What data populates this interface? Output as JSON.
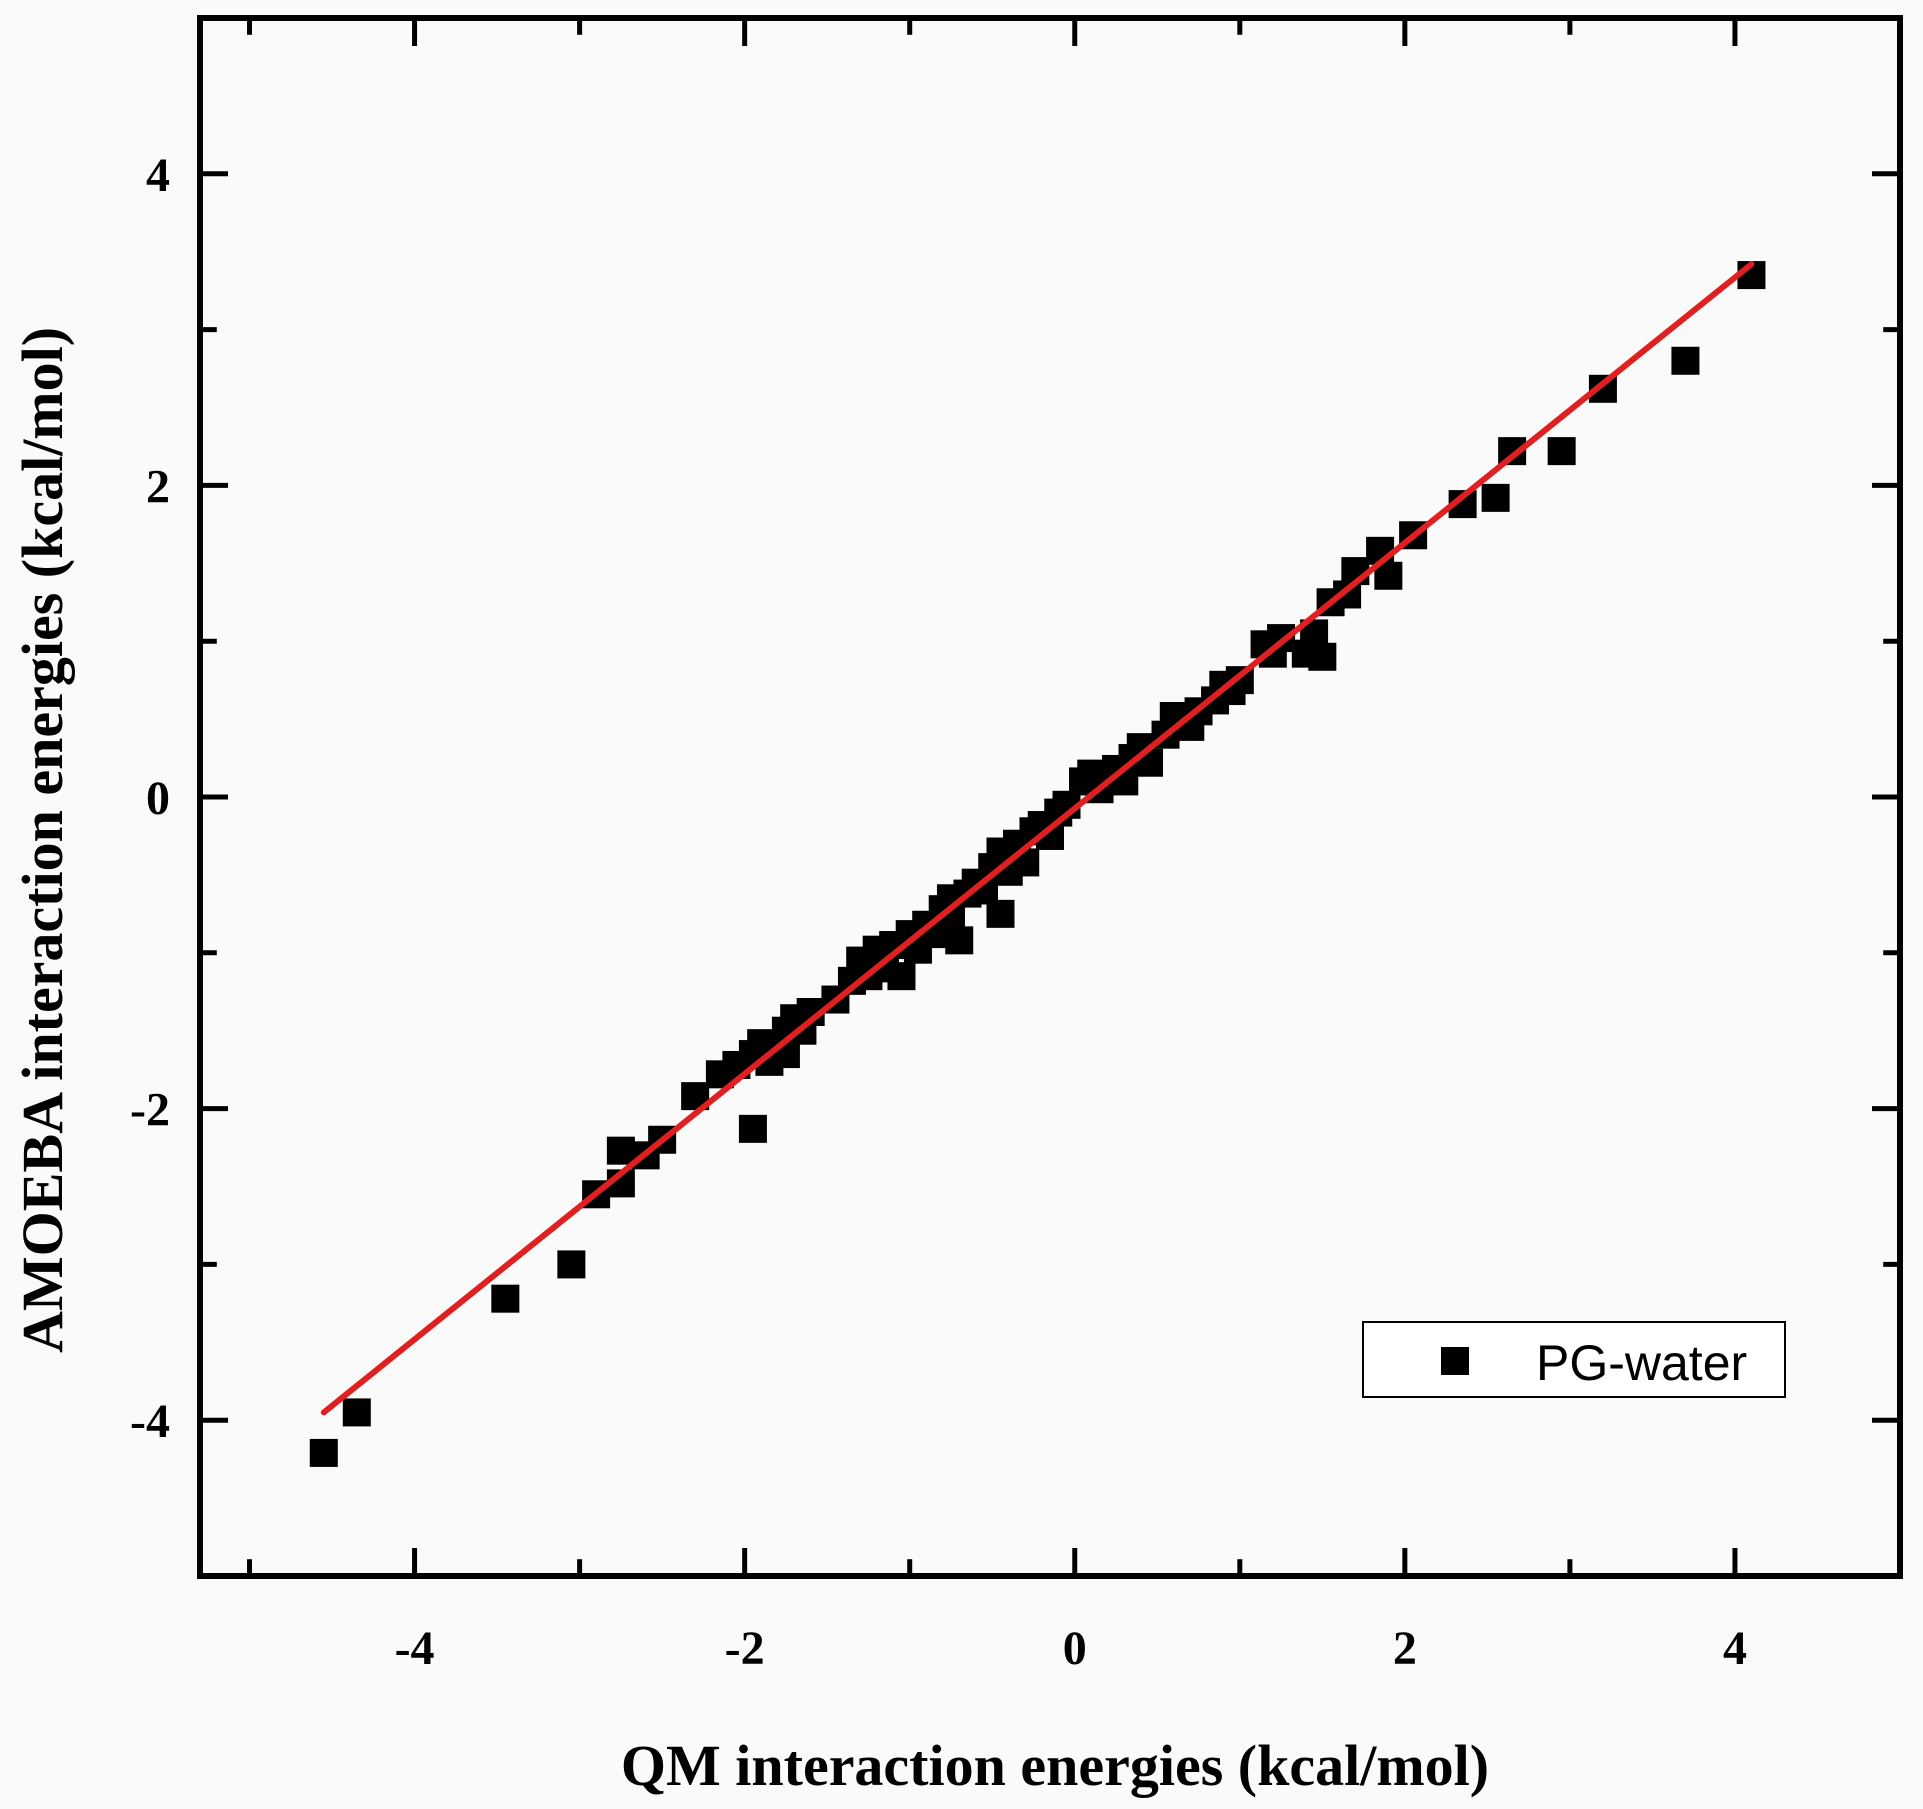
{
  "chart_data": {
    "type": "scatter",
    "xlabel": "QM interaction energies (kcal/mol)",
    "ylabel": "AMOEBA interaction energies (kcal/mol)",
    "xlim": [
      -5.3,
      5.0
    ],
    "ylim": [
      -5.0,
      5.0
    ],
    "xticks": [
      -4,
      -2,
      0,
      2,
      4
    ],
    "yticks": [
      -4,
      -2,
      0,
      2,
      4
    ],
    "xtick_labels": [
      "-4",
      "-2",
      "0",
      "2",
      "4"
    ],
    "ytick_labels": [
      "-4",
      "-2",
      "0",
      "2",
      "4"
    ],
    "grid": false,
    "legend_position": "bottom-right",
    "series": [
      {
        "name": "PG-water",
        "marker": "square",
        "color": "#000000",
        "points": [
          [
            -4.55,
            -4.21
          ],
          [
            -4.35,
            -3.95
          ],
          [
            -3.45,
            -3.22
          ],
          [
            -3.05,
            -3.0
          ],
          [
            -2.9,
            -2.55
          ],
          [
            -2.75,
            -2.48
          ],
          [
            -2.75,
            -2.27
          ],
          [
            -2.6,
            -2.3
          ],
          [
            -2.5,
            -2.2
          ],
          [
            -2.3,
            -1.92
          ],
          [
            -2.15,
            -1.78
          ],
          [
            -2.05,
            -1.72
          ],
          [
            -1.95,
            -2.13
          ],
          [
            -1.95,
            -1.65
          ],
          [
            -1.9,
            -1.58
          ],
          [
            -1.85,
            -1.7
          ],
          [
            -1.75,
            -1.5
          ],
          [
            -1.75,
            -1.65
          ],
          [
            -1.7,
            -1.42
          ],
          [
            -1.65,
            -1.5
          ],
          [
            -1.6,
            -1.38
          ],
          [
            -1.45,
            -1.3
          ],
          [
            -1.35,
            -1.18
          ],
          [
            -1.3,
            -1.05
          ],
          [
            -1.25,
            -1.15
          ],
          [
            -1.2,
            -0.98
          ],
          [
            -1.15,
            -1.1
          ],
          [
            -1.1,
            -0.95
          ],
          [
            -1.05,
            -1.15
          ],
          [
            -1.0,
            -0.88
          ],
          [
            -0.95,
            -0.98
          ],
          [
            -0.9,
            -0.82
          ],
          [
            -0.85,
            -0.88
          ],
          [
            -0.8,
            -0.72
          ],
          [
            -0.75,
            -0.82
          ],
          [
            -0.75,
            -0.65
          ],
          [
            -0.7,
            -0.92
          ],
          [
            -0.65,
            -0.62
          ],
          [
            -0.6,
            -0.55
          ],
          [
            -0.55,
            -0.6
          ],
          [
            -0.5,
            -0.45
          ],
          [
            -0.45,
            -0.35
          ],
          [
            -0.45,
            -0.75
          ],
          [
            -0.4,
            -0.48
          ],
          [
            -0.35,
            -0.3
          ],
          [
            -0.3,
            -0.42
          ],
          [
            -0.25,
            -0.22
          ],
          [
            -0.2,
            -0.18
          ],
          [
            -0.15,
            -0.25
          ],
          [
            -0.1,
            -0.1
          ],
          [
            -0.05,
            -0.05
          ],
          [
            0.05,
            0.1
          ],
          [
            0.1,
            0.15
          ],
          [
            0.15,
            0.05
          ],
          [
            0.2,
            0.12
          ],
          [
            0.25,
            0.18
          ],
          [
            0.3,
            0.1
          ],
          [
            0.35,
            0.25
          ],
          [
            0.4,
            0.32
          ],
          [
            0.45,
            0.22
          ],
          [
            0.55,
            0.4
          ],
          [
            0.6,
            0.52
          ],
          [
            0.65,
            0.48
          ],
          [
            0.7,
            0.45
          ],
          [
            0.75,
            0.55
          ],
          [
            0.85,
            0.62
          ],
          [
            0.9,
            0.72
          ],
          [
            0.95,
            0.68
          ],
          [
            1.0,
            0.75
          ],
          [
            1.15,
            0.98
          ],
          [
            1.2,
            0.92
          ],
          [
            1.25,
            1.02
          ],
          [
            1.4,
            0.92
          ],
          [
            1.45,
            1.05
          ],
          [
            1.5,
            0.9
          ],
          [
            1.55,
            1.25
          ],
          [
            1.65,
            1.3
          ],
          [
            1.7,
            1.45
          ],
          [
            1.85,
            1.58
          ],
          [
            1.9,
            1.42
          ],
          [
            2.05,
            1.68
          ],
          [
            2.35,
            1.88
          ],
          [
            2.55,
            1.92
          ],
          [
            2.65,
            2.22
          ],
          [
            2.95,
            2.22
          ],
          [
            3.2,
            2.62
          ],
          [
            3.7,
            2.8
          ],
          [
            4.1,
            3.35
          ]
        ]
      }
    ],
    "fit_line": {
      "color": "#e02020",
      "x": [
        -4.55,
        4.1
      ],
      "y": [
        -3.95,
        3.42
      ]
    }
  }
}
